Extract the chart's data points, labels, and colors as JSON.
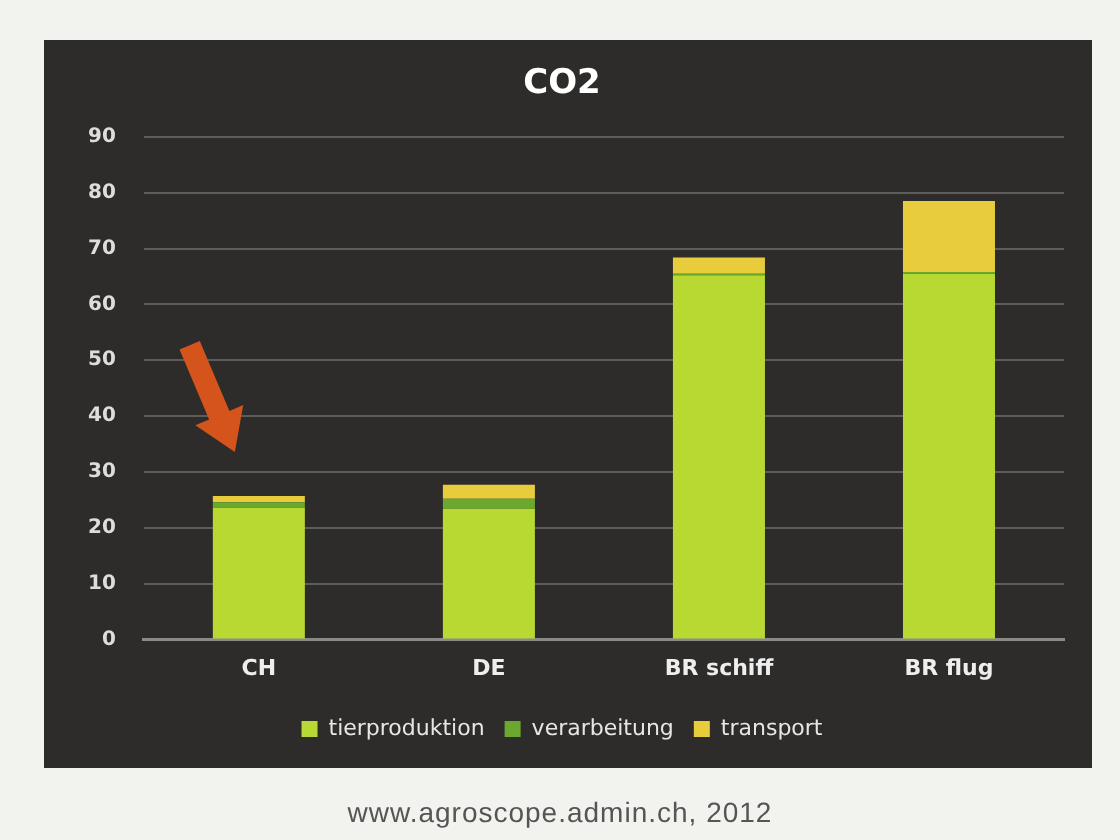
{
  "chart_data": {
    "type": "bar",
    "title": "CO2",
    "categories": [
      "CH",
      "DE",
      "BR schiff",
      "BR flug"
    ],
    "stacked": true,
    "series": [
      {
        "name": "tierproduktion",
        "color": "#b8d832",
        "values": [
          23.6,
          23.4,
          65.2,
          65.5
        ]
      },
      {
        "name": "verarbeitung",
        "color": "#6aa82e",
        "values": [
          1.0,
          1.8,
          0.3,
          0.3
        ]
      },
      {
        "name": "transport",
        "color": "#e8cc3c",
        "values": [
          1.1,
          2.5,
          2.9,
          12.7
        ]
      }
    ],
    "ylim": [
      0,
      90
    ],
    "yticks": [
      0,
      10,
      20,
      30,
      40,
      50,
      60,
      70,
      80,
      90
    ],
    "grid": "y",
    "legend": "bottom",
    "annotations": [
      "www.agroscope.admin.ch, 2012"
    ]
  }
}
